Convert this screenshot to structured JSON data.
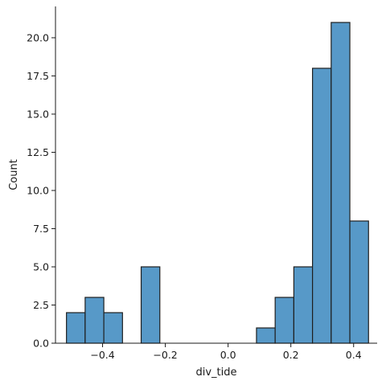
{
  "chart_data": {
    "type": "bar",
    "title": "",
    "xlabel": "div_tide",
    "ylabel": "Count",
    "xlim": [
      -0.55,
      0.475
    ],
    "ylim": [
      0,
      22.05
    ],
    "grid": false,
    "x_ticks": [
      {
        "value": -0.4,
        "label": "−0.4"
      },
      {
        "value": -0.2,
        "label": "−0.2"
      },
      {
        "value": 0.0,
        "label": "0.0"
      },
      {
        "value": 0.2,
        "label": "0.2"
      },
      {
        "value": 0.4,
        "label": "0.4"
      }
    ],
    "y_ticks": [
      {
        "value": 0.0,
        "label": "0.0"
      },
      {
        "value": 2.5,
        "label": "2.5"
      },
      {
        "value": 5.0,
        "label": "5.0"
      },
      {
        "value": 7.5,
        "label": "7.5"
      },
      {
        "value": 10.0,
        "label": "10.0"
      },
      {
        "value": 12.5,
        "label": "12.5"
      },
      {
        "value": 15.0,
        "label": "15.0"
      },
      {
        "value": 17.5,
        "label": "17.5"
      },
      {
        "value": 20.0,
        "label": "20.0"
      }
    ],
    "bins": [
      {
        "x0": -0.515,
        "x1": -0.4555,
        "count": 2
      },
      {
        "x0": -0.4555,
        "x1": -0.396,
        "count": 3
      },
      {
        "x0": -0.396,
        "x1": -0.3365,
        "count": 2
      },
      {
        "x0": -0.277,
        "x1": -0.2175,
        "count": 5
      },
      {
        "x0": 0.0905,
        "x1": 0.15,
        "count": 1
      },
      {
        "x0": 0.15,
        "x1": 0.2095,
        "count": 3
      },
      {
        "x0": 0.2095,
        "x1": 0.269,
        "count": 5
      },
      {
        "x0": 0.269,
        "x1": 0.3285,
        "count": 18
      },
      {
        "x0": 0.3285,
        "x1": 0.388,
        "count": 21
      },
      {
        "x0": 0.388,
        "x1": 0.4475,
        "count": 8
      }
    ],
    "colors": {
      "bar_fill": "#5799c8",
      "bar_edge": "#1f1f1f",
      "axis": "#1a1a1a"
    }
  }
}
